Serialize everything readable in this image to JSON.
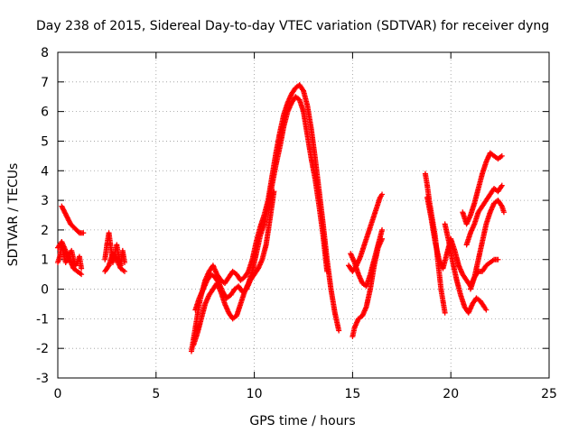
{
  "chart_data": {
    "type": "scatter",
    "title": "Day 238 of 2015, Sidereal Day-to-day VTEC variation (SDTVAR) for receiver dyng",
    "xlabel": "GPS time / hours",
    "ylabel": "SDTVAR / TECUs",
    "xlim": [
      0,
      25
    ],
    "ylim": [
      -3,
      8
    ],
    "x_ticks": [
      0,
      5,
      10,
      15,
      20,
      25
    ],
    "y_ticks": [
      -3,
      -2,
      -1,
      0,
      1,
      2,
      3,
      4,
      5,
      6,
      7,
      8
    ],
    "grid": true,
    "marker": "+",
    "color": "#ff0000",
    "series": [
      {
        "name": "SDTVAR",
        "segments": [
          [
            [
              0.0,
              0.9
            ],
            [
              0.1,
              1.1
            ],
            [
              0.2,
              1.5
            ],
            [
              0.3,
              1.2
            ],
            [
              0.4,
              0.9
            ],
            [
              0.5,
              1.0
            ],
            [
              0.6,
              1.2
            ],
            [
              0.7,
              1.3
            ],
            [
              0.8,
              1.0
            ],
            [
              0.9,
              0.8
            ],
            [
              1.0,
              0.9
            ],
            [
              1.1,
              1.1
            ],
            [
              1.2,
              0.7
            ]
          ],
          [
            [
              0.2,
              2.8
            ],
            [
              0.35,
              2.6
            ],
            [
              0.5,
              2.4
            ],
            [
              0.65,
              2.2
            ],
            [
              0.8,
              2.1
            ],
            [
              0.95,
              2.0
            ],
            [
              1.1,
              1.9
            ],
            [
              1.3,
              1.9
            ]
          ],
          [
            [
              0.0,
              1.4
            ],
            [
              0.2,
              1.6
            ],
            [
              0.4,
              1.3
            ],
            [
              0.6,
              1.0
            ],
            [
              0.8,
              0.7
            ],
            [
              1.0,
              0.6
            ],
            [
              1.2,
              0.5
            ]
          ],
          [
            [
              2.4,
              1.0
            ],
            [
              2.5,
              1.5
            ],
            [
              2.6,
              1.9
            ],
            [
              2.7,
              1.4
            ],
            [
              2.8,
              0.9
            ],
            [
              2.9,
              1.2
            ],
            [
              3.0,
              1.5
            ],
            [
              3.1,
              1.1
            ],
            [
              3.2,
              0.8
            ],
            [
              3.3,
              1.3
            ],
            [
              3.4,
              0.9
            ]
          ],
          [
            [
              2.4,
              0.6
            ],
            [
              2.6,
              0.8
            ],
            [
              2.8,
              1.2
            ],
            [
              3.0,
              1.0
            ],
            [
              3.2,
              0.7
            ],
            [
              3.4,
              0.6
            ]
          ],
          [
            [
              6.8,
              -2.1
            ],
            [
              6.9,
              -1.7
            ],
            [
              7.0,
              -1.3
            ],
            [
              7.1,
              -0.9
            ],
            [
              7.2,
              -0.5
            ],
            [
              7.3,
              -0.2
            ],
            [
              7.5,
              0.3
            ],
            [
              7.7,
              0.6
            ],
            [
              7.9,
              0.8
            ],
            [
              8.1,
              0.5
            ],
            [
              8.3,
              0.3
            ],
            [
              8.5,
              0.2
            ],
            [
              8.7,
              0.4
            ],
            [
              8.9,
              0.6
            ],
            [
              9.1,
              0.5
            ],
            [
              9.3,
              0.3
            ],
            [
              9.5,
              0.4
            ],
            [
              9.7,
              0.6
            ],
            [
              9.9,
              1.0
            ],
            [
              10.1,
              1.6
            ],
            [
              10.3,
              2.1
            ],
            [
              10.5,
              2.5
            ],
            [
              10.7,
              3.0
            ],
            [
              10.9,
              3.8
            ],
            [
              11.1,
              4.6
            ],
            [
              11.3,
              5.3
            ],
            [
              11.5,
              5.9
            ],
            [
              11.7,
              6.3
            ],
            [
              11.9,
              6.6
            ],
            [
              12.1,
              6.8
            ],
            [
              12.3,
              6.9
            ],
            [
              12.5,
              6.7
            ],
            [
              12.7,
              6.2
            ],
            [
              12.9,
              5.4
            ],
            [
              13.1,
              4.4
            ],
            [
              13.3,
              3.3
            ],
            [
              13.5,
              2.2
            ],
            [
              13.7,
              1.0
            ],
            [
              13.9,
              0.0
            ],
            [
              14.1,
              -0.8
            ],
            [
              14.3,
              -1.4
            ]
          ],
          [
            [
              6.9,
              -1.9
            ],
            [
              7.1,
              -1.5
            ],
            [
              7.3,
              -1.0
            ],
            [
              7.5,
              -0.5
            ],
            [
              7.7,
              -0.2
            ],
            [
              7.9,
              0.0
            ],
            [
              8.1,
              0.2
            ],
            [
              8.3,
              -0.1
            ],
            [
              8.5,
              -0.5
            ],
            [
              8.7,
              -0.8
            ],
            [
              8.9,
              -1.0
            ],
            [
              9.1,
              -0.9
            ],
            [
              9.3,
              -0.5
            ],
            [
              9.5,
              -0.1
            ],
            [
              9.7,
              0.2
            ],
            [
              9.9,
              0.6
            ],
            [
              10.1,
              1.2
            ],
            [
              10.3,
              1.8
            ],
            [
              10.5,
              2.2
            ],
            [
              10.7,
              2.8
            ],
            [
              10.9,
              3.5
            ],
            [
              11.1,
              4.2
            ],
            [
              11.3,
              4.8
            ],
            [
              11.5,
              5.5
            ],
            [
              11.7,
              6.0
            ],
            [
              11.9,
              6.3
            ],
            [
              12.1,
              6.5
            ],
            [
              12.3,
              6.4
            ],
            [
              12.5,
              6.0
            ],
            [
              12.7,
              5.2
            ],
            [
              12.9,
              4.4
            ],
            [
              13.1,
              3.7
            ],
            [
              13.3,
              2.8
            ],
            [
              13.5,
              1.8
            ],
            [
              13.7,
              0.6
            ]
          ],
          [
            [
              7.0,
              -0.7
            ],
            [
              7.2,
              -0.3
            ],
            [
              7.4,
              0.0
            ],
            [
              7.6,
              0.3
            ],
            [
              7.8,
              0.5
            ],
            [
              8.0,
              0.4
            ],
            [
              8.2,
              0.2
            ],
            [
              8.4,
              -0.1
            ],
            [
              8.6,
              -0.3
            ],
            [
              8.8,
              -0.2
            ],
            [
              9.0,
              0.0
            ],
            [
              9.2,
              0.1
            ],
            [
              9.4,
              -0.1
            ],
            [
              9.6,
              0.0
            ],
            [
              9.8,
              0.3
            ],
            [
              10.0,
              0.5
            ],
            [
              10.2,
              0.7
            ],
            [
              10.4,
              1.0
            ],
            [
              10.6,
              1.5
            ],
            [
              10.8,
              2.4
            ],
            [
              11.0,
              3.3
            ]
          ],
          [
            [
              15.0,
              -1.6
            ],
            [
              15.1,
              -1.3
            ],
            [
              15.3,
              -1.0
            ],
            [
              15.5,
              -0.9
            ],
            [
              15.7,
              -0.6
            ],
            [
              15.9,
              0.0
            ],
            [
              16.1,
              0.8
            ],
            [
              16.3,
              1.4
            ],
            [
              16.5,
              1.7
            ]
          ],
          [
            [
              14.8,
              0.8
            ],
            [
              15.0,
              0.6
            ],
            [
              15.2,
              0.8
            ],
            [
              15.4,
              1.1
            ],
            [
              15.6,
              1.5
            ],
            [
              15.8,
              1.9
            ],
            [
              16.0,
              2.3
            ],
            [
              16.2,
              2.7
            ],
            [
              16.4,
              3.1
            ],
            [
              16.5,
              3.2
            ]
          ],
          [
            [
              14.9,
              1.2
            ],
            [
              15.1,
              0.9
            ],
            [
              15.3,
              0.5
            ],
            [
              15.5,
              0.2
            ],
            [
              15.7,
              0.1
            ],
            [
              15.9,
              0.5
            ],
            [
              16.1,
              1.0
            ],
            [
              16.3,
              1.5
            ],
            [
              16.5,
              2.0
            ]
          ],
          [
            [
              18.7,
              3.9
            ],
            [
              18.8,
              3.5
            ],
            [
              18.9,
              3.0
            ],
            [
              19.0,
              2.6
            ],
            [
              19.1,
              2.2
            ],
            [
              19.2,
              1.8
            ],
            [
              19.3,
              1.2
            ],
            [
              19.4,
              0.6
            ],
            [
              19.5,
              0.0
            ],
            [
              19.6,
              -0.4
            ],
            [
              19.7,
              -0.8
            ]
          ],
          [
            [
              18.8,
              3.1
            ],
            [
              19.0,
              2.4
            ],
            [
              19.2,
              1.6
            ],
            [
              19.4,
              1.0
            ],
            [
              19.6,
              0.7
            ],
            [
              19.8,
              1.2
            ],
            [
              20.0,
              1.7
            ],
            [
              20.2,
              1.3
            ],
            [
              20.4,
              0.8
            ],
            [
              20.6,
              0.5
            ],
            [
              20.8,
              0.3
            ],
            [
              21.0,
              0.1
            ],
            [
              21.2,
              0.4
            ],
            [
              21.4,
              1.0
            ],
            [
              21.6,
              1.6
            ],
            [
              21.8,
              2.2
            ],
            [
              22.0,
              2.6
            ],
            [
              22.2,
              2.9
            ],
            [
              22.4,
              3.0
            ],
            [
              22.6,
              2.8
            ],
            [
              22.7,
              2.6
            ]
          ],
          [
            [
              19.7,
              2.2
            ],
            [
              19.9,
              1.6
            ],
            [
              20.1,
              0.9
            ],
            [
              20.3,
              0.3
            ],
            [
              20.5,
              -0.2
            ],
            [
              20.7,
              -0.6
            ],
            [
              20.9,
              -0.8
            ],
            [
              21.1,
              -0.5
            ],
            [
              21.3,
              -0.3
            ],
            [
              21.5,
              -0.4
            ],
            [
              21.7,
              -0.6
            ],
            [
              21.8,
              -0.7
            ]
          ],
          [
            [
              20.6,
              2.6
            ],
            [
              20.8,
              2.2
            ],
            [
              21.0,
              2.5
            ],
            [
              21.2,
              2.9
            ],
            [
              21.4,
              3.4
            ],
            [
              21.6,
              3.9
            ],
            [
              21.8,
              4.3
            ],
            [
              22.0,
              4.6
            ],
            [
              22.2,
              4.5
            ],
            [
              22.4,
              4.4
            ],
            [
              22.6,
              4.5
            ]
          ],
          [
            [
              20.8,
              1.5
            ],
            [
              21.0,
              1.9
            ],
            [
              21.2,
              2.2
            ],
            [
              21.4,
              2.6
            ],
            [
              21.6,
              2.8
            ],
            [
              21.8,
              3.0
            ],
            [
              22.0,
              3.2
            ],
            [
              22.2,
              3.4
            ],
            [
              22.4,
              3.3
            ],
            [
              22.6,
              3.5
            ]
          ],
          [
            [
              21.0,
              0.0
            ],
            [
              21.2,
              0.4
            ],
            [
              21.4,
              0.6
            ],
            [
              21.6,
              0.6
            ],
            [
              21.8,
              0.8
            ],
            [
              22.0,
              0.9
            ],
            [
              22.2,
              1.0
            ],
            [
              22.4,
              1.0
            ]
          ]
        ]
      }
    ]
  }
}
